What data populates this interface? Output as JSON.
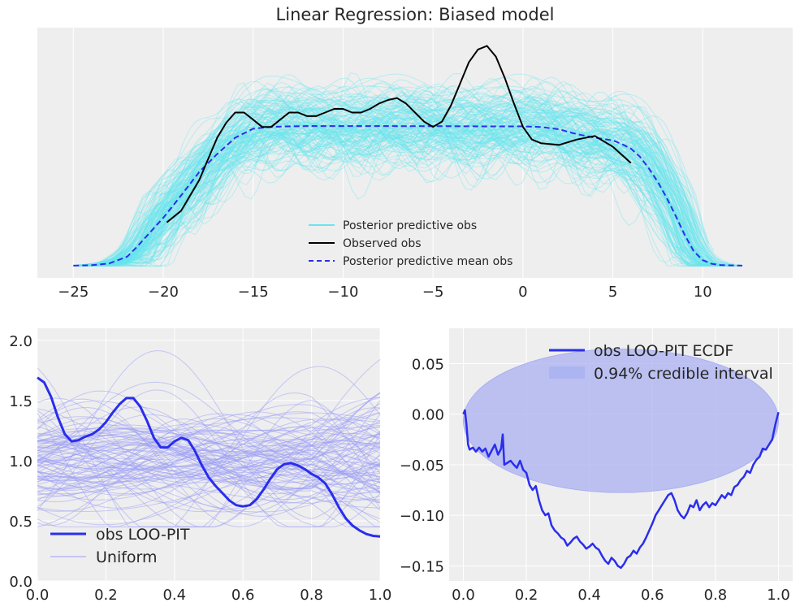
{
  "colors": {
    "panel_bg": "#eeeeee",
    "grid": "#ffffff",
    "pp_draws": "#66e6ef",
    "observed": "#000000",
    "pp_mean": "#2a2eec",
    "pit_line": "#2a2eec",
    "uniform": "#9b9ef5",
    "band_fill": "#aab0f2"
  },
  "chart_data": [
    {
      "type": "line",
      "title": "Linear Regression: Biased model",
      "xlabel": "",
      "ylabel": "",
      "xlim": [
        -27,
        15
      ],
      "ylim": [
        0,
        0.12
      ],
      "xticks": [
        -25,
        -20,
        -15,
        -10,
        -5,
        0,
        5,
        10
      ],
      "x_tick_labels": [
        "−25",
        "−20",
        "−15",
        "−10",
        "−5",
        "0",
        "5",
        "10"
      ],
      "yticks_visible": false,
      "grid": true,
      "legend_position": "lower-center",
      "legend": [
        "Posterior predictive obs",
        "Observed obs",
        "Posterior predictive mean obs"
      ],
      "series": [
        {
          "name": "Observed obs",
          "style": "solid",
          "x": [
            -19.8,
            -19,
            -18,
            -17,
            -16.5,
            -16,
            -15.5,
            -15,
            -14.5,
            -14,
            -13.5,
            -13,
            -12.5,
            -12,
            -11.5,
            -11,
            -10.5,
            -10,
            -9.5,
            -9,
            -8.5,
            -8,
            -7.5,
            -7,
            -6.5,
            -6,
            -5.5,
            -5,
            -4.5,
            -4,
            -3.5,
            -3,
            -2.5,
            -2,
            -1.5,
            -1,
            -0.5,
            0,
            0.5,
            1,
            2,
            3,
            4,
            5,
            6
          ],
          "y": [
            0.0245,
            0.031,
            0.048,
            0.0715,
            0.0798,
            0.0855,
            0.0855,
            0.0815,
            0.0775,
            0.0775,
            0.0815,
            0.0855,
            0.0855,
            0.0835,
            0.0835,
            0.0855,
            0.0875,
            0.0875,
            0.0855,
            0.0855,
            0.0875,
            0.0905,
            0.0925,
            0.0935,
            0.0905,
            0.0855,
            0.0805,
            0.0775,
            0.0805,
            0.0895,
            0.1015,
            0.1135,
            0.1205,
            0.1225,
            0.1165,
            0.1045,
            0.0905,
            0.0775,
            0.0705,
            0.0685,
            0.0675,
            0.0705,
            0.0725,
            0.0665,
            0.0575
          ]
        },
        {
          "name": "Posterior predictive mean obs",
          "style": "dashed",
          "x": [
            -25,
            -24,
            -23,
            -22,
            -21.5,
            -21,
            -20.5,
            -20,
            -19,
            -18,
            -17,
            -16,
            -15,
            -14,
            -13,
            -12,
            -10,
            -8,
            -6,
            -4,
            -2,
            0,
            1,
            2,
            3,
            4,
            5,
            5.5,
            6,
            6.5,
            7,
            7.5,
            8,
            8.5,
            9,
            9.5,
            10,
            10.5,
            11,
            12.2
          ],
          "y": [
            0.0005,
            0.0007,
            0.0017,
            0.0055,
            0.0105,
            0.016,
            0.0215,
            0.027,
            0.0395,
            0.0525,
            0.0625,
            0.0715,
            0.0765,
            0.0775,
            0.0778,
            0.078,
            0.078,
            0.078,
            0.0779,
            0.0779,
            0.0778,
            0.0778,
            0.0775,
            0.0762,
            0.0735,
            0.0715,
            0.07,
            0.068,
            0.0655,
            0.061,
            0.0545,
            0.047,
            0.038,
            0.028,
            0.0175,
            0.0085,
            0.0035,
            0.0015,
            0.0008,
            0.0005
          ]
        }
      ]
    },
    {
      "type": "line",
      "title": "",
      "xlabel": "",
      "ylabel": "",
      "xlim": [
        0,
        1
      ],
      "ylim": [
        0,
        2.1
      ],
      "xticks": [
        0,
        0.2,
        0.4,
        0.6,
        0.8,
        1
      ],
      "x_tick_labels": [
        "0.0",
        "0.2",
        "0.4",
        "0.6",
        "0.8",
        "1.0"
      ],
      "yticks": [
        0,
        0.5,
        1,
        1.5,
        2
      ],
      "y_tick_labels": [
        "0.0",
        "0.5",
        "1.0",
        "1.5",
        "2.0"
      ],
      "grid": true,
      "legend_position": "lower-left",
      "legend": [
        "obs LOO-PIT",
        "Uniform"
      ],
      "series": [
        {
          "name": "obs LOO-PIT",
          "x": [
            0,
            0.02,
            0.04,
            0.06,
            0.08,
            0.1,
            0.12,
            0.14,
            0.16,
            0.18,
            0.2,
            0.22,
            0.24,
            0.26,
            0.28,
            0.3,
            0.32,
            0.34,
            0.36,
            0.38,
            0.4,
            0.42,
            0.44,
            0.46,
            0.48,
            0.5,
            0.52,
            0.54,
            0.56,
            0.58,
            0.6,
            0.62,
            0.64,
            0.66,
            0.68,
            0.7,
            0.72,
            0.74,
            0.76,
            0.78,
            0.8,
            0.82,
            0.84,
            0.86,
            0.88,
            0.9,
            0.92,
            0.94,
            0.96,
            0.98,
            1
          ],
          "y": [
            1.69,
            1.65,
            1.53,
            1.36,
            1.22,
            1.16,
            1.17,
            1.2,
            1.22,
            1.26,
            1.32,
            1.4,
            1.47,
            1.52,
            1.52,
            1.45,
            1.33,
            1.19,
            1.11,
            1.11,
            1.16,
            1.19,
            1.17,
            1.08,
            0.96,
            0.86,
            0.79,
            0.73,
            0.67,
            0.63,
            0.62,
            0.63,
            0.68,
            0.76,
            0.85,
            0.93,
            0.97,
            0.98,
            0.96,
            0.93,
            0.89,
            0.86,
            0.81,
            0.72,
            0.61,
            0.52,
            0.46,
            0.42,
            0.39,
            0.375,
            0.37
          ]
        },
        {
          "name": "Uniform",
          "draws": 100
        }
      ]
    },
    {
      "type": "line",
      "title": "",
      "xlabel": "",
      "ylabel": "",
      "xlim": [
        -0.045,
        1.045
      ],
      "ylim": [
        -0.165,
        0.085
      ],
      "xticks": [
        0,
        0.2,
        0.4,
        0.6,
        0.8,
        1
      ],
      "x_tick_labels": [
        "0.0",
        "0.2",
        "0.4",
        "0.6",
        "0.8",
        "1.0"
      ],
      "yticks": [
        -0.15,
        -0.1,
        -0.05,
        0,
        0.05
      ],
      "y_tick_labels": [
        "−0.15",
        "−0.10",
        "−0.05",
        "0.00",
        "0.05"
      ],
      "grid": true,
      "legend_position": "upper-right",
      "legend": [
        "obs LOO-PIT ECDF",
        "0.94% credible interval"
      ],
      "series": [
        {
          "name": "obs LOO-PIT ECDF",
          "x": [
            0,
            0.005,
            0.01,
            0.015,
            0.02,
            0.03,
            0.04,
            0.05,
            0.06,
            0.07,
            0.08,
            0.09,
            0.1,
            0.11,
            0.12,
            0.125,
            0.13,
            0.14,
            0.15,
            0.16,
            0.17,
            0.18,
            0.19,
            0.2,
            0.21,
            0.22,
            0.23,
            0.24,
            0.25,
            0.26,
            0.27,
            0.28,
            0.29,
            0.3,
            0.31,
            0.32,
            0.33,
            0.34,
            0.35,
            0.36,
            0.37,
            0.38,
            0.39,
            0.4,
            0.41,
            0.42,
            0.43,
            0.44,
            0.45,
            0.46,
            0.47,
            0.48,
            0.49,
            0.5,
            0.51,
            0.52,
            0.53,
            0.54,
            0.55,
            0.56,
            0.57,
            0.58,
            0.59,
            0.6,
            0.61,
            0.62,
            0.63,
            0.64,
            0.65,
            0.66,
            0.67,
            0.68,
            0.69,
            0.7,
            0.71,
            0.72,
            0.73,
            0.74,
            0.75,
            0.76,
            0.77,
            0.78,
            0.79,
            0.8,
            0.81,
            0.82,
            0.83,
            0.84,
            0.85,
            0.86,
            0.87,
            0.88,
            0.89,
            0.9,
            0.91,
            0.92,
            0.93,
            0.94,
            0.95,
            0.96,
            0.97,
            0.98,
            0.99,
            1
          ],
          "y": [
            0,
            0.004,
            -0.01,
            -0.03,
            -0.035,
            -0.033,
            -0.037,
            -0.033,
            -0.037,
            -0.034,
            -0.042,
            -0.036,
            -0.03,
            -0.04,
            -0.034,
            -0.02,
            -0.05,
            -0.048,
            -0.046,
            -0.05,
            -0.053,
            -0.046,
            -0.055,
            -0.058,
            -0.07,
            -0.075,
            -0.071,
            -0.085,
            -0.095,
            -0.1,
            -0.098,
            -0.11,
            -0.115,
            -0.118,
            -0.122,
            -0.124,
            -0.13,
            -0.127,
            -0.123,
            -0.121,
            -0.126,
            -0.129,
            -0.133,
            -0.131,
            -0.128,
            -0.132,
            -0.134,
            -0.14,
            -0.145,
            -0.148,
            -0.142,
            -0.145,
            -0.15,
            -0.152,
            -0.148,
            -0.142,
            -0.14,
            -0.135,
            -0.138,
            -0.132,
            -0.128,
            -0.122,
            -0.115,
            -0.108,
            -0.1,
            -0.095,
            -0.09,
            -0.085,
            -0.08,
            -0.078,
            -0.085,
            -0.095,
            -0.1,
            -0.103,
            -0.098,
            -0.09,
            -0.092,
            -0.085,
            -0.095,
            -0.09,
            -0.087,
            -0.092,
            -0.088,
            -0.09,
            -0.085,
            -0.08,
            -0.083,
            -0.078,
            -0.08,
            -0.072,
            -0.07,
            -0.065,
            -0.062,
            -0.056,
            -0.058,
            -0.05,
            -0.045,
            -0.042,
            -0.034,
            -0.035,
            -0.03,
            -0.025,
            -0.01,
            0.002
          ]
        },
        {
          "name": "0.94% credible interval",
          "shape": "ellipse",
          "center": [
            0.5,
            -0.0065
          ],
          "x_halfwidth": 0.5,
          "y_halfwidth": 0.071
        }
      ]
    }
  ]
}
